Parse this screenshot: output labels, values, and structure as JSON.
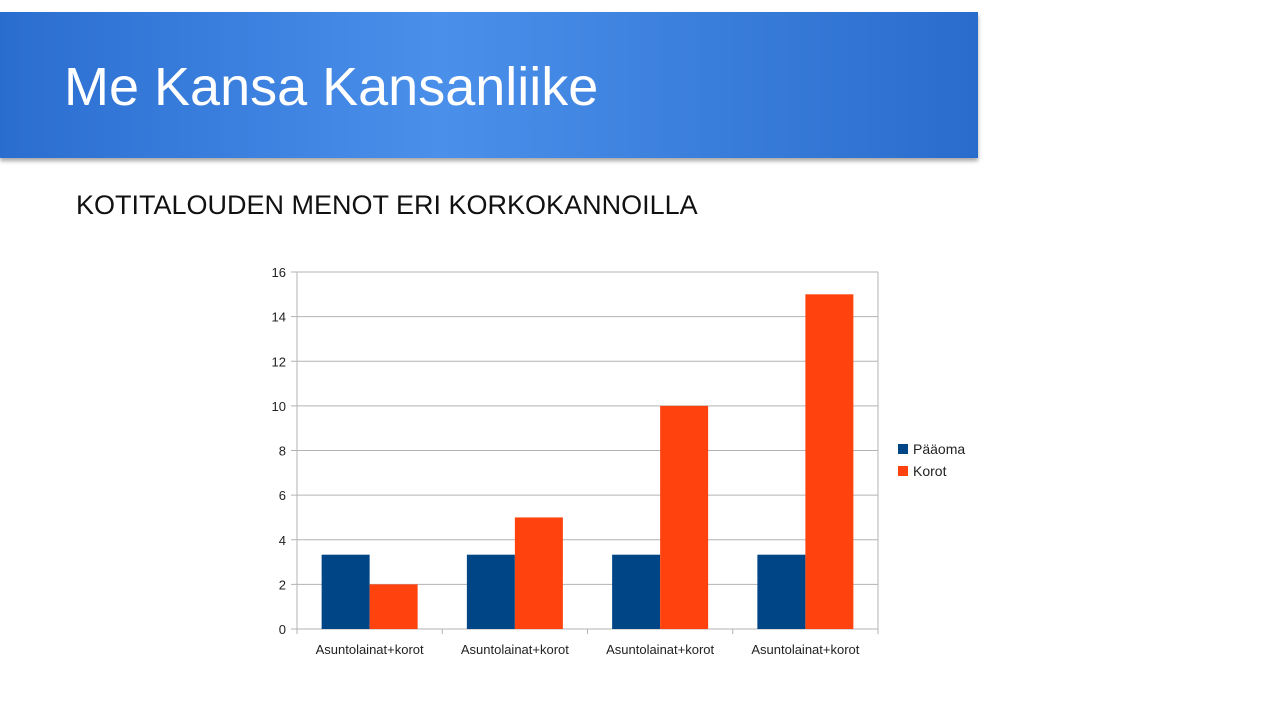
{
  "slide": {
    "title": "Me Kansa Kansanliike",
    "subtitle": "KOTITALOUDEN MENOT ERI KORKOKANNOILLA"
  },
  "chart_data": {
    "type": "bar",
    "categories": [
      "Asuntolainat+korot",
      "Asuntolainat+korot",
      "Asuntolainat+korot",
      "Asuntolainat+korot"
    ],
    "series": [
      {
        "name": "Pääoma",
        "values": [
          3.33,
          3.33,
          3.33,
          3.33
        ],
        "color": "#004586"
      },
      {
        "name": "Korot",
        "values": [
          2,
          5,
          10,
          15
        ],
        "color": "#ff420e"
      }
    ],
    "ylim": [
      0,
      16
    ],
    "yticks": [
      0,
      2,
      4,
      6,
      8,
      10,
      12,
      14,
      16
    ],
    "grid": true,
    "legend": "right",
    "xlabel": "",
    "ylabel": ""
  }
}
